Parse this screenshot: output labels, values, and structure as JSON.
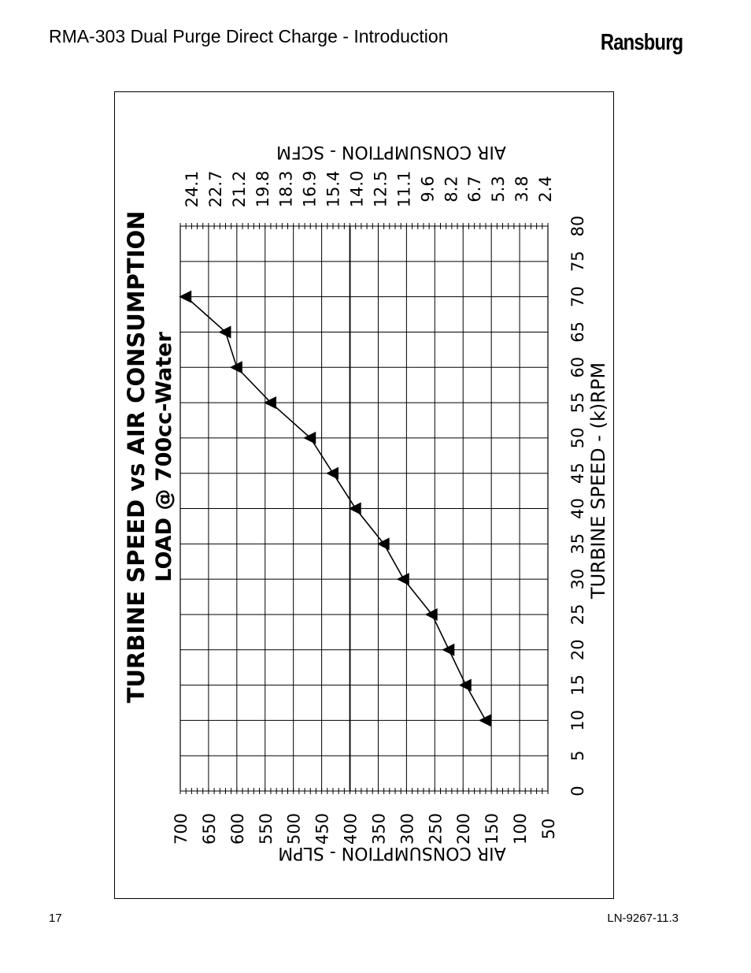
{
  "header": {
    "title": "RMA-303 Dual Purge Direct Charge - Introduction",
    "brand": "Ransburg"
  },
  "footer": {
    "page_number": "17",
    "doc_code": "LN-9267-11.3"
  },
  "chart_data": {
    "type": "line",
    "title": "TURBINE SPEED vs AIR CONSUMPTION",
    "subtitle": "LOAD @ 700cc-Water",
    "xlabel": "TURBINE SPEED - (k)RPM",
    "ylabel_bottom": "AIR CONSUMPTION - SLPM",
    "ylabel_top": "AIR CONSUMPTION - SCFM",
    "xlim": [
      0,
      80
    ],
    "ylim": [
      50,
      700
    ],
    "grid": true,
    "speed_ticks": [
      "0",
      "5",
      "10",
      "15",
      "20",
      "25",
      "30",
      "35",
      "40",
      "45",
      "50",
      "55",
      "60",
      "65",
      "70",
      "75",
      "80"
    ],
    "slpm_ticks": [
      "700",
      "650",
      "600",
      "550",
      "500",
      "450",
      "400",
      "350",
      "300",
      "250",
      "200",
      "150",
      "100",
      "50"
    ],
    "scfm_ticks": [
      "24.1",
      "22.7",
      "21.2",
      "19.8",
      "18.3",
      "16.9",
      "15.4",
      "14.0",
      "12.5",
      "11.1",
      "9.6",
      "8.2",
      "6.7",
      "5.3",
      "3.8",
      "2.4"
    ],
    "series": [
      {
        "name": "Load @ 700cc-Water",
        "x": [
          10,
          15,
          20,
          25,
          30,
          35,
          40,
          45,
          50,
          55,
          60,
          65,
          70
        ],
        "y": [
          160,
          195,
          225,
          255,
          305,
          340,
          390,
          430,
          470,
          540,
          600,
          620,
          690
        ]
      }
    ]
  }
}
